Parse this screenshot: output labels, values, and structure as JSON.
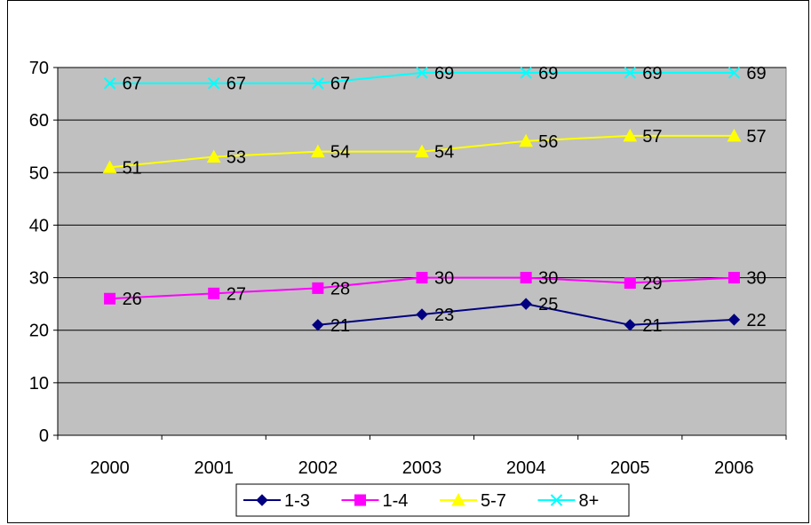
{
  "chart_data": {
    "type": "line",
    "title": "",
    "xlabel": "",
    "ylabel": "",
    "categories": [
      "2000",
      "2001",
      "2002",
      "2003",
      "2004",
      "2005",
      "2006"
    ],
    "ylim": [
      0,
      70
    ],
    "yticks": [
      0,
      10,
      20,
      30,
      40,
      50,
      60,
      70
    ],
    "grid": true,
    "plot_background": "#c0c0c0",
    "legend_position": "bottom",
    "series": [
      {
        "name": "1-3",
        "color": "#000080",
        "marker": "diamond",
        "values": [
          null,
          null,
          21,
          23,
          25,
          21,
          22
        ]
      },
      {
        "name": "1-4",
        "color": "#ff00ff",
        "marker": "square",
        "values": [
          26,
          27,
          28,
          30,
          30,
          29,
          30
        ]
      },
      {
        "name": "5-7",
        "color": "#ffff00",
        "marker": "triangle",
        "values": [
          51,
          53,
          54,
          54,
          56,
          57,
          57
        ]
      },
      {
        "name": "8+",
        "color": "#00ffff",
        "marker": "x",
        "values": [
          67,
          67,
          67,
          69,
          69,
          69,
          69
        ]
      }
    ]
  }
}
